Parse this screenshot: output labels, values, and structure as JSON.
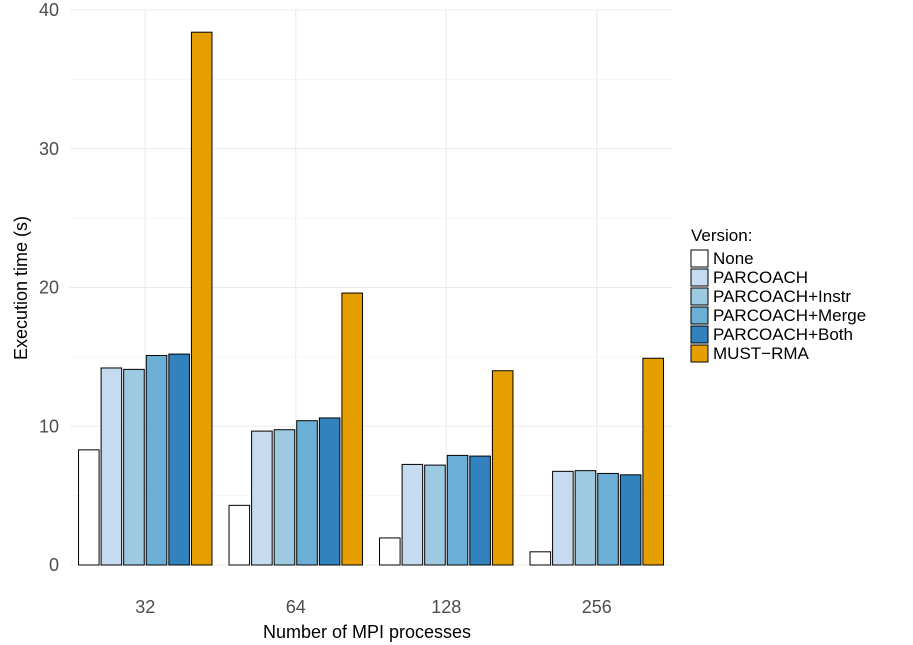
{
  "chart_data": {
    "type": "bar",
    "xlabel": "Number of MPI processes",
    "ylabel": "Execution time (s)",
    "ylim": [
      0,
      40
    ],
    "yticks": [
      0,
      10,
      20,
      30,
      40
    ],
    "grid": true,
    "legend_title": "Version:",
    "legend_position": "right",
    "categories": [
      "32",
      "64",
      "128",
      "256"
    ],
    "series": [
      {
        "name": "None",
        "color": "#ffffff",
        "values": [
          8.3,
          4.3,
          1.95,
          0.95
        ]
      },
      {
        "name": "PARCOACH",
        "color": "#c6dbef",
        "values": [
          14.2,
          9.65,
          7.25,
          6.75
        ]
      },
      {
        "name": "PARCOACH+Instr",
        "color": "#9ecae1",
        "values": [
          14.1,
          9.75,
          7.2,
          6.8
        ]
      },
      {
        "name": "PARCOACH+Merge",
        "color": "#6baed6",
        "values": [
          15.1,
          10.4,
          7.9,
          6.6
        ]
      },
      {
        "name": "PARCOACH+Both",
        "color": "#3182bd",
        "values": [
          15.2,
          10.6,
          7.85,
          6.5
        ]
      },
      {
        "name": "MUST−RMA",
        "color": "#e69f00",
        "values": [
          38.4,
          19.6,
          14.0,
          14.9
        ]
      }
    ]
  }
}
